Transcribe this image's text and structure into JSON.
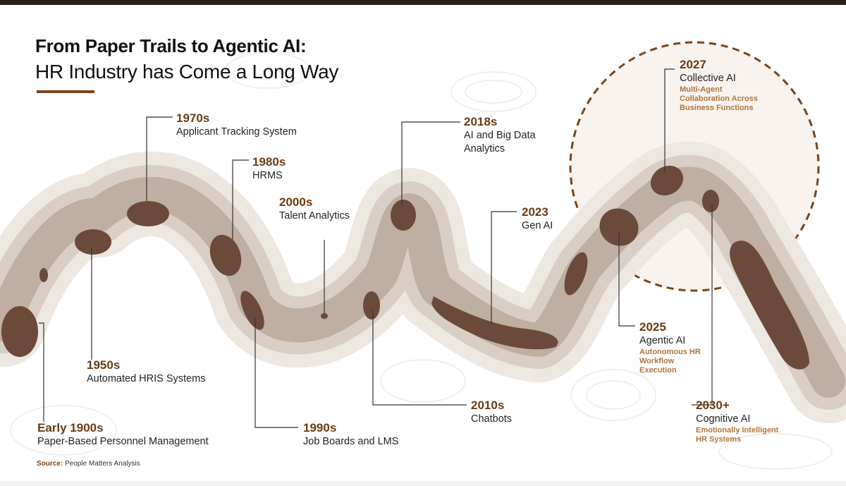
{
  "title": {
    "line1": "From Paper Trails to Agentic AI:",
    "line2": "HR Industry has Come a Long Way"
  },
  "colors": {
    "accent": "#7a4316",
    "blob_dark": "#6e4c3a",
    "band_light": "#e6ded8",
    "band_mid": "#c9bbb1",
    "description": "#b0753a",
    "circle_border": "#7a4316"
  },
  "milestones": [
    {
      "year": "Early 1900s",
      "name": "Paper-Based Personnel Management"
    },
    {
      "year": "1950s",
      "name": "Automated HRIS Systems"
    },
    {
      "year": "1970s",
      "name": "Applicant Tracking System"
    },
    {
      "year": "1980s",
      "name": "HRMS"
    },
    {
      "year": "1990s",
      "name": "Job Boards and LMS"
    },
    {
      "year": "2000s",
      "name": "Talent Analytics"
    },
    {
      "year": "2010s",
      "name": "Chatbots"
    },
    {
      "year": "2018s",
      "name": "AI and Big Data Analytics"
    },
    {
      "year": "2023",
      "name": "Gen AI"
    },
    {
      "year": "2025",
      "name": "Agentic AI",
      "description": "Autonomous HR Workflow Execution"
    },
    {
      "year": "2027",
      "name": "Collective AI",
      "description": "Multi-Agent Collaboration Across Business Functions"
    },
    {
      "year": "2030+",
      "name": "Cognitive AI",
      "description": "Emotionally Intelligent HR Systems"
    }
  ],
  "source": {
    "label": "Source:",
    "text": "People Matters Analysis"
  }
}
